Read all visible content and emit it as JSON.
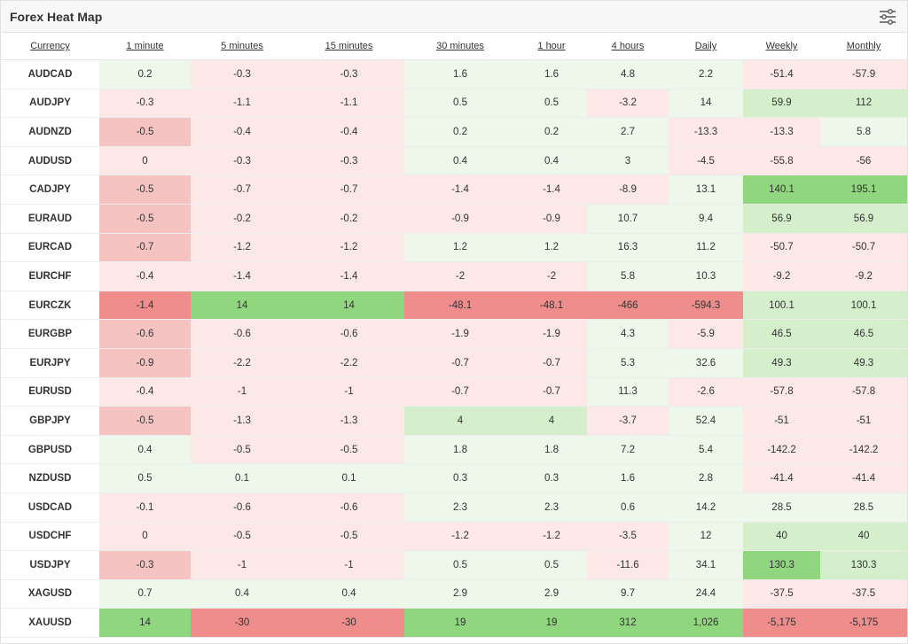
{
  "title": "Forex Heat Map",
  "settings_icon": "sliders-settings-icon",
  "columns": [
    "Currency",
    "1 minute",
    "5 minutes",
    "15 minutes",
    "30 minutes",
    "1 hour",
    "4 hours",
    "Daily",
    "Weekly",
    "Monthly"
  ],
  "colors": {
    "neg_light": "#fde8e8",
    "neg_mid": "#f6c3c3",
    "neg_strong": "#ef8c8c",
    "pos_light": "#eef8ea",
    "pos_mid": "#d5efcc",
    "pos_strong": "#8fd67f"
  },
  "rows": [
    {
      "currency": "AUDCAD",
      "values": [
        "0.2",
        "-0.3",
        "-0.3",
        "1.6",
        "1.6",
        "4.8",
        "2.2",
        "-51.4",
        "-57.9"
      ]
    },
    {
      "currency": "AUDJPY",
      "values": [
        "-0.3",
        "-1.1",
        "-1.1",
        "0.5",
        "0.5",
        "-3.2",
        "14",
        "59.9",
        "112"
      ]
    },
    {
      "currency": "AUDNZD",
      "values": [
        "-0.5",
        "-0.4",
        "-0.4",
        "0.2",
        "0.2",
        "2.7",
        "-13.3",
        "-13.3",
        "5.8"
      ]
    },
    {
      "currency": "AUDUSD",
      "values": [
        "0",
        "-0.3",
        "-0.3",
        "0.4",
        "0.4",
        "3",
        "-4.5",
        "-55.8",
        "-56"
      ]
    },
    {
      "currency": "CADJPY",
      "values": [
        "-0.5",
        "-0.7",
        "-0.7",
        "-1.4",
        "-1.4",
        "-8.9",
        "13.1",
        "140.1",
        "195.1"
      ]
    },
    {
      "currency": "EURAUD",
      "values": [
        "-0.5",
        "-0.2",
        "-0.2",
        "-0.9",
        "-0.9",
        "10.7",
        "9.4",
        "56.9",
        "56.9"
      ]
    },
    {
      "currency": "EURCAD",
      "values": [
        "-0.7",
        "-1.2",
        "-1.2",
        "1.2",
        "1.2",
        "16.3",
        "11.2",
        "-50.7",
        "-50.7"
      ]
    },
    {
      "currency": "EURCHF",
      "values": [
        "-0.4",
        "-1.4",
        "-1.4",
        "-2",
        "-2",
        "5.8",
        "10.3",
        "-9.2",
        "-9.2"
      ]
    },
    {
      "currency": "EURCZK",
      "values": [
        "-1.4",
        "14",
        "14",
        "-48.1",
        "-48.1",
        "-466",
        "-594.3",
        "100.1",
        "100.1"
      ]
    },
    {
      "currency": "EURGBP",
      "values": [
        "-0.6",
        "-0.6",
        "-0.6",
        "-1.9",
        "-1.9",
        "4.3",
        "-5.9",
        "46.5",
        "46.5"
      ]
    },
    {
      "currency": "EURJPY",
      "values": [
        "-0.9",
        "-2.2",
        "-2.2",
        "-0.7",
        "-0.7",
        "5.3",
        "32.6",
        "49.3",
        "49.3"
      ]
    },
    {
      "currency": "EURUSD",
      "values": [
        "-0.4",
        "-1",
        "-1",
        "-0.7",
        "-0.7",
        "11.3",
        "-2.6",
        "-57.8",
        "-57.8"
      ]
    },
    {
      "currency": "GBPJPY",
      "values": [
        "-0.5",
        "-1.3",
        "-1.3",
        "4",
        "4",
        "-3.7",
        "52.4",
        "-51",
        "-51"
      ]
    },
    {
      "currency": "GBPUSD",
      "values": [
        "0.4",
        "-0.5",
        "-0.5",
        "1.8",
        "1.8",
        "7.2",
        "5.4",
        "-142.2",
        "-142.2"
      ]
    },
    {
      "currency": "NZDUSD",
      "values": [
        "0.5",
        "0.1",
        "0.1",
        "0.3",
        "0.3",
        "1.6",
        "2.8",
        "-41.4",
        "-41.4"
      ]
    },
    {
      "currency": "USDCAD",
      "values": [
        "-0.1",
        "-0.6",
        "-0.6",
        "2.3",
        "2.3",
        "0.6",
        "14.2",
        "28.5",
        "28.5"
      ]
    },
    {
      "currency": "USDCHF",
      "values": [
        "0",
        "-0.5",
        "-0.5",
        "-1.2",
        "-1.2",
        "-3.5",
        "12",
        "40",
        "40"
      ]
    },
    {
      "currency": "USDJPY",
      "values": [
        "-0.3",
        "-1",
        "-1",
        "0.5",
        "0.5",
        "-11.6",
        "34.1",
        "130.3",
        "130.3"
      ]
    },
    {
      "currency": "XAGUSD",
      "values": [
        "0.7",
        "0.4",
        "0.4",
        "2.9",
        "2.9",
        "9.7",
        "24.4",
        "-37.5",
        "-37.5"
      ]
    },
    {
      "currency": "XAUUSD",
      "values": [
        "14",
        "-30",
        "-30",
        "19",
        "19",
        "312",
        "1,026",
        "-5,175",
        "-5,175"
      ]
    }
  ],
  "cell_colors": [
    [
      "pl",
      "nl",
      "nl",
      "pl",
      "pl",
      "pl",
      "pl",
      "nl",
      "nl"
    ],
    [
      "nl",
      "nl",
      "nl",
      "pl",
      "pl",
      "nl",
      "pl",
      "pm",
      "pm"
    ],
    [
      "nm",
      "nl",
      "nl",
      "pl",
      "pl",
      "pl",
      "nl",
      "nl",
      "pl"
    ],
    [
      "nl",
      "nl",
      "nl",
      "pl",
      "pl",
      "pl",
      "nl",
      "nl",
      "nl"
    ],
    [
      "nm",
      "nl",
      "nl",
      "nl",
      "nl",
      "nl",
      "pl",
      "ps",
      "ps"
    ],
    [
      "nm",
      "nl",
      "nl",
      "nl",
      "nl",
      "pl",
      "pl",
      "pm",
      "pm"
    ],
    [
      "nm",
      "nl",
      "nl",
      "pl",
      "pl",
      "pl",
      "pl",
      "nl",
      "nl"
    ],
    [
      "nl",
      "nl",
      "nl",
      "nl",
      "nl",
      "pl",
      "pl",
      "nl",
      "nl"
    ],
    [
      "ns",
      "ps",
      "ps",
      "ns",
      "ns",
      "ns",
      "ns",
      "pm",
      "pm"
    ],
    [
      "nm",
      "nl",
      "nl",
      "nl",
      "nl",
      "pl",
      "nl",
      "pm",
      "pm"
    ],
    [
      "nm",
      "nl",
      "nl",
      "nl",
      "nl",
      "pl",
      "pl",
      "pm",
      "pm"
    ],
    [
      "nl",
      "nl",
      "nl",
      "nl",
      "nl",
      "pl",
      "nl",
      "nl",
      "nl"
    ],
    [
      "nm",
      "nl",
      "nl",
      "pm",
      "pm",
      "nl",
      "pl",
      "nl",
      "nl"
    ],
    [
      "pl",
      "nl",
      "nl",
      "pl",
      "pl",
      "pl",
      "pl",
      "nl",
      "nl"
    ],
    [
      "pl",
      "pl",
      "pl",
      "pl",
      "pl",
      "pl",
      "pl",
      "nl",
      "nl"
    ],
    [
      "nl",
      "nl",
      "nl",
      "pl",
      "pl",
      "pl",
      "pl",
      "pl",
      "pl"
    ],
    [
      "nl",
      "nl",
      "nl",
      "nl",
      "nl",
      "nl",
      "pl",
      "pm",
      "pm"
    ],
    [
      "nm",
      "nl",
      "nl",
      "pl",
      "pl",
      "nl",
      "pl",
      "ps",
      "pm"
    ],
    [
      "pl",
      "pl",
      "pl",
      "pl",
      "pl",
      "pl",
      "pl",
      "nl",
      "nl"
    ],
    [
      "ps",
      "ns",
      "ns",
      "ps",
      "ps",
      "ps",
      "ps",
      "ns",
      "ns"
    ]
  ]
}
